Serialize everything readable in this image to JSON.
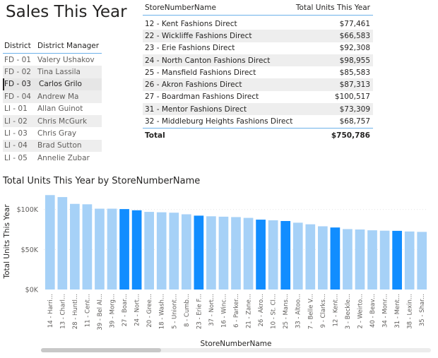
{
  "title": "Sales This Year",
  "district_table": {
    "headers": [
      "District",
      "District Manager"
    ],
    "rows": [
      {
        "district": "FD - 01",
        "manager": "Valery Ushakov"
      },
      {
        "district": "FD - 02",
        "manager": "Tina Lassila"
      },
      {
        "district": "FD - 03",
        "manager": "Carlos Grilo"
      },
      {
        "district": "FD - 04",
        "manager": "Andrew Ma"
      },
      {
        "district": "LI - 01",
        "manager": "Allan Guinot"
      },
      {
        "district": "LI - 02",
        "manager": "Chris McGurk"
      },
      {
        "district": "LI - 03",
        "manager": "Chris Gray"
      },
      {
        "district": "LI - 04",
        "manager": "Brad Sutton"
      },
      {
        "district": "LI - 05",
        "manager": "Annelie Zubar"
      }
    ],
    "selected_index": 2
  },
  "store_table": {
    "headers": [
      "StoreNumberName",
      "Total Units This Year"
    ],
    "rows": [
      {
        "store": "12 - Kent Fashions Direct",
        "units": "$77,461"
      },
      {
        "store": "22 - Wickliffe Fashions Direct",
        "units": "$66,583"
      },
      {
        "store": "23 - Erie Fashions Direct",
        "units": "$92,308"
      },
      {
        "store": "24 - North Canton Fashions Direct",
        "units": "$98,955"
      },
      {
        "store": "25 - Mansfield Fashions Direct",
        "units": "$85,583"
      },
      {
        "store": "26 - Akron Fashions Direct",
        "units": "$87,313"
      },
      {
        "store": "27 - Boardman Fashions Direct",
        "units": "$100,517"
      },
      {
        "store": "31 - Mentor Fashions Direct",
        "units": "$73,309"
      },
      {
        "store": "32 - Middleburg Heights Fashions Direct",
        "units": "$68,757"
      }
    ],
    "total_label": "Total",
    "total_value": "$750,786"
  },
  "chart_data": {
    "type": "bar",
    "title": "Total Units This Year by StoreNumberName",
    "xlabel": "StoreNumberName",
    "ylabel": "Total Units This Year",
    "ylim": [
      0,
      120000
    ],
    "yticks": [
      0,
      50000,
      100000
    ],
    "ytick_labels": [
      "$0K",
      "$50K",
      "$100K"
    ],
    "grid": true,
    "categories": [
      "14 - Harri...",
      "13 - Charl...",
      "28 - Huntl...",
      "11 - Cent...",
      "39 - Bel Al...",
      "39 - Morg...",
      "27 - Boar...",
      "24 - Nort...",
      "20 - Gree...",
      "18 - Wash...",
      "5 - Uniont...",
      "8 - Cumb...",
      "23 - Erie F...",
      "37 - Nort...",
      "16 - Winc...",
      "6 - Parker...",
      "21 - Zane...",
      "26 - Akro...",
      "10 - St. Cl...",
      "25 - Mans...",
      "33 - Altoo...",
      "7 - Belle V...",
      "9 - Clarks...",
      "12 - Kent...",
      "3 - Beckle...",
      "2 - Weirto...",
      "40 - Beav...",
      "34 - Monr...",
      "31 - Ment...",
      "38 - Lexin...",
      "35 - Shar..."
    ],
    "values": [
      118000,
      115500,
      107000,
      106500,
      101000,
      101000,
      100500,
      99000,
      97000,
      96500,
      96000,
      94000,
      92300,
      91500,
      91000,
      90500,
      89500,
      87300,
      86500,
      85600,
      83500,
      81500,
      79000,
      77500,
      75500,
      75000,
      74000,
      73500,
      73300,
      72500,
      72000
    ],
    "highlighted": [
      false,
      false,
      false,
      false,
      false,
      false,
      true,
      true,
      false,
      false,
      false,
      false,
      true,
      false,
      false,
      false,
      false,
      true,
      false,
      true,
      false,
      false,
      false,
      true,
      false,
      false,
      false,
      false,
      true,
      false,
      false
    ],
    "colors": {
      "normal": "#a6d1f7",
      "highlight": "#118dff"
    }
  }
}
